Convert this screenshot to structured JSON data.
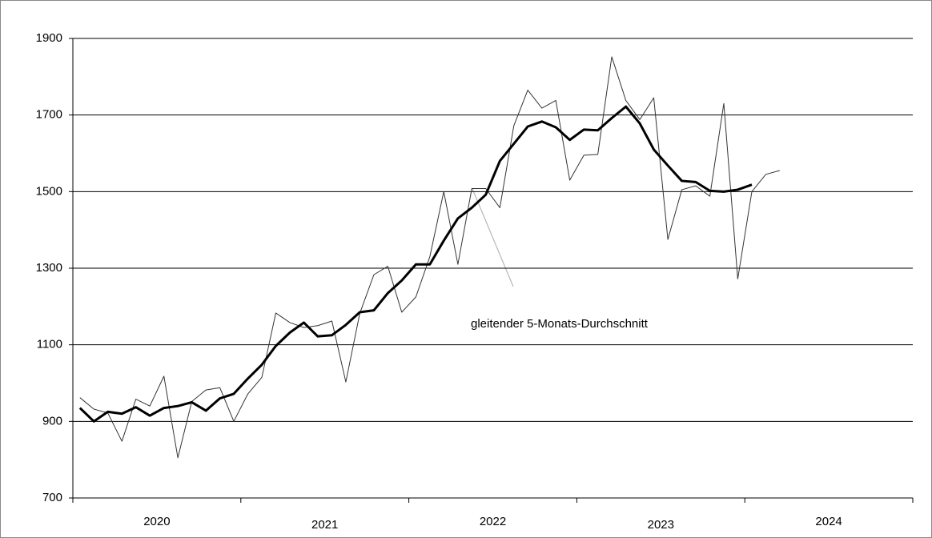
{
  "chart_data": {
    "type": "line",
    "annotation_text": "gleitender 5-Monats-Durchschnitt",
    "categories": [
      "2020",
      "2021",
      "2022",
      "2023",
      "2024"
    ],
    "x": [
      2020.042,
      2020.125,
      2020.208,
      2020.292,
      2020.375,
      2020.458,
      2020.542,
      2020.625,
      2020.708,
      2020.792,
      2020.875,
      2020.958,
      2021.042,
      2021.125,
      2021.208,
      2021.292,
      2021.375,
      2021.458,
      2021.542,
      2021.625,
      2021.708,
      2021.792,
      2021.875,
      2021.958,
      2022.042,
      2022.125,
      2022.208,
      2022.292,
      2022.375,
      2022.458,
      2022.542,
      2022.625,
      2022.708,
      2022.792,
      2022.875,
      2022.958,
      2023.042,
      2023.125,
      2023.208,
      2023.292,
      2023.375,
      2023.458,
      2023.542,
      2023.625,
      2023.708,
      2023.792,
      2023.875,
      2023.958,
      2024.042,
      2024.125,
      2024.208
    ],
    "series": [
      {
        "color": "#333333",
        "width": 1,
        "values": [
          962,
          932,
          922,
          848,
          958,
          940,
          1018,
          805,
          952,
          982,
          988,
          900,
          972,
          1015,
          1183,
          1158,
          1145,
          1150,
          1162,
          1003,
          1182,
          1283,
          1305,
          1185,
          1225,
          1330,
          1500,
          1310,
          1508,
          1508,
          1458,
          1672,
          1765,
          1718,
          1738,
          1530,
          1595,
          1597,
          1852,
          1738,
          1688,
          1745,
          1375,
          1505,
          1515,
          1488,
          1730,
          1272,
          1500,
          1545,
          1555
        ]
      },
      {
        "color": "#000000",
        "width": 3,
        "values": [
          935,
          900,
          925,
          920,
          937,
          915,
          935,
          940,
          950,
          928,
          960,
          972,
          1012,
          1048,
          1097,
          1132,
          1158,
          1122,
          1125,
          1152,
          1185,
          1190,
          1235,
          1268,
          1310,
          1310,
          1372,
          1430,
          1458,
          1492,
          1580,
          1625,
          1670,
          1683,
          1668,
          1635,
          1662,
          1660,
          1692,
          1722,
          1678,
          1610,
          1568,
          1528,
          1525,
          1502,
          1500,
          1505,
          1518,
          null,
          null
        ]
      }
    ],
    "xlim": [
      2020,
      2025
    ],
    "ylim": [
      700,
      1900
    ],
    "yticks": [
      700,
      900,
      1100,
      1300,
      1500,
      1700,
      1900
    ],
    "grid": true
  }
}
